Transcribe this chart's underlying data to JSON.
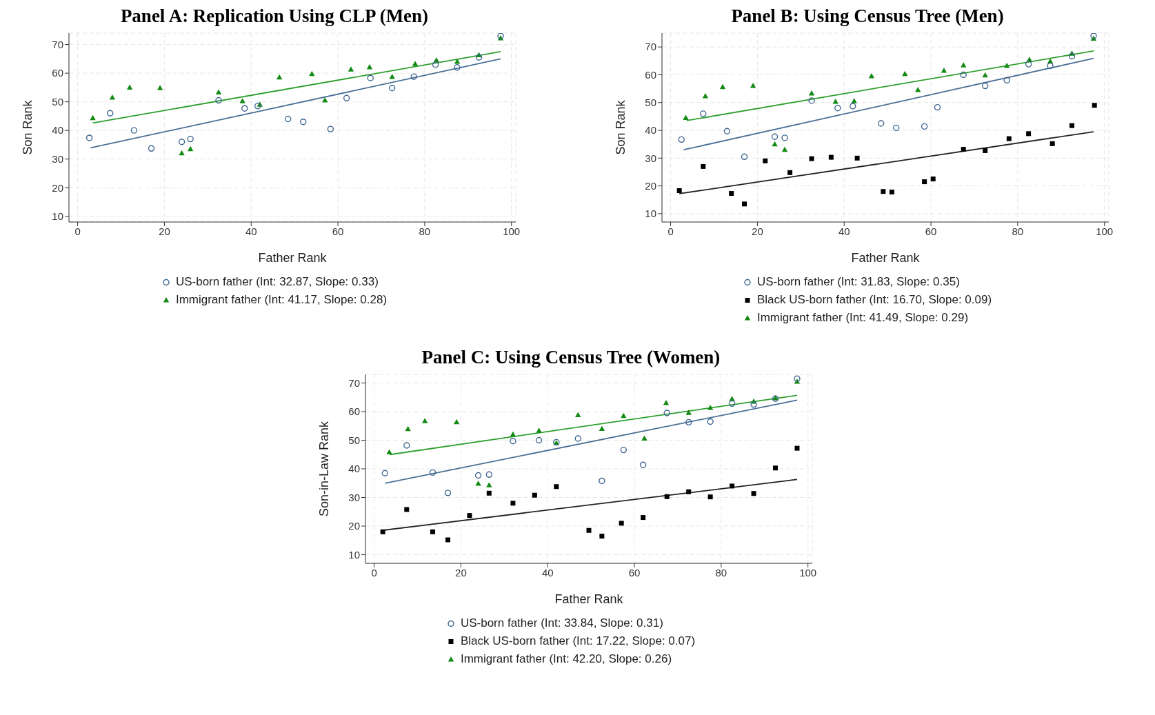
{
  "chart_data": [
    {
      "type": "scatter",
      "title": "Panel A: Replication Using CLP (Men)",
      "xlabel": "Father Rank",
      "ylabel": "Son Rank",
      "xlim": [
        -2,
        101
      ],
      "xticks": [
        0,
        20,
        40,
        60,
        80,
        100
      ],
      "ylim": [
        8,
        74
      ],
      "yticks": [
        10,
        20,
        30,
        40,
        50,
        60,
        70
      ],
      "grid": true,
      "legend": "bottom",
      "series": [
        {
          "name": "US-born father (Int: 32.87, Slope: 0.33)",
          "color": "#3d6490",
          "marker": "circle",
          "x": [
            2.7,
            7.5,
            13,
            17,
            24,
            26,
            32.5,
            38.5,
            41.5,
            48.5,
            52,
            58.3,
            62,
            67.5,
            72.5,
            77.5,
            82.5,
            87.5,
            92.5,
            97.5
          ],
          "values": [
            37.4,
            46,
            40,
            33.7,
            36,
            37,
            50.5,
            47.7,
            48.5,
            44,
            43,
            40.5,
            51.3,
            58.3,
            54.8,
            58.8,
            63,
            62,
            65.5,
            73
          ]
        },
        {
          "name": "Immigrant father (Int: 41.17, Slope: 0.28)",
          "color": "#138a13",
          "marker": "triangle",
          "x": [
            3.5,
            8,
            12,
            19,
            24,
            26,
            32.5,
            38,
            42,
            46.5,
            54,
            57,
            63,
            67.3,
            72.5,
            77.8,
            82.7,
            87.5,
            92.5,
            97.5
          ],
          "values": [
            44.3,
            51.5,
            55,
            54.8,
            32,
            33.5,
            53.3,
            50.2,
            49,
            58.5,
            59.7,
            50.5,
            61.3,
            62.1,
            58.7,
            63.2,
            64.5,
            64,
            66.3,
            72.2
          ]
        },
        {
          "type": "line",
          "color": "#4a6f96",
          "marker": "none",
          "x": [
            3,
            97.5
          ],
          "values": [
            33.9,
            65
          ]
        },
        {
          "type": "line",
          "color": "#2ea02e",
          "marker": "none",
          "x": [
            3.5,
            97.5
          ],
          "values": [
            42.6,
            67.5
          ]
        }
      ]
    },
    {
      "type": "scatter",
      "title": "Panel B: Using Census Tree (Men)",
      "xlabel": "Father Rank",
      "ylabel": "Son Rank",
      "xlim": [
        -2,
        101
      ],
      "xticks": [
        0,
        20,
        40,
        60,
        80,
        100
      ],
      "ylim": [
        7,
        75
      ],
      "yticks": [
        10,
        20,
        30,
        40,
        50,
        60,
        70
      ],
      "grid": true,
      "legend": "bottom",
      "series": [
        {
          "name": "US-born father (Int: 31.83, Slope: 0.35)",
          "color": "#3d6490",
          "marker": "circle",
          "x": [
            2.5,
            7.5,
            13,
            17,
            24,
            26.3,
            32.5,
            38.5,
            42,
            48.5,
            52,
            58.5,
            61.5,
            67.5,
            72.5,
            77.5,
            82.5,
            87.5,
            92.5,
            97.5
          ],
          "values": [
            36.7,
            46,
            39.7,
            30.5,
            37.7,
            37.3,
            50.7,
            48,
            48.7,
            42.5,
            40.9,
            41.4,
            48.3,
            60,
            56,
            58,
            63.8,
            63.2,
            66.7,
            74
          ]
        },
        {
          "name": "Black US-born father (Int: 16.70, Slope: 0.09)",
          "color": "#000000",
          "marker": "square",
          "x": [
            2,
            7.5,
            14,
            17,
            21.8,
            27.5,
            32.5,
            37,
            43,
            49,
            51,
            58.5,
            60.5,
            67.5,
            72.5,
            78,
            82.5,
            88,
            92.5,
            97.7
          ],
          "values": [
            18.3,
            27,
            17.3,
            13.5,
            29,
            24.8,
            29.8,
            30.3,
            30,
            18,
            17.8,
            21.5,
            22.5,
            33.2,
            32.7,
            37,
            38.8,
            35.2,
            41.7,
            49
          ]
        },
        {
          "name": "Immigrant father (Int: 41.49, Slope: 0.29)",
          "color": "#138a13",
          "marker": "triangle",
          "x": [
            3.5,
            8,
            12,
            19,
            24,
            26.3,
            32.5,
            38,
            42.3,
            46.3,
            54,
            57,
            63,
            67.5,
            72.5,
            77.5,
            82.7,
            87.5,
            92.5,
            97.5
          ],
          "values": [
            44.5,
            52.3,
            55.6,
            56,
            35,
            33,
            53.3,
            50.3,
            50.5,
            59.5,
            60.3,
            54.5,
            61.5,
            63.4,
            59.8,
            63.2,
            65.4,
            64.8,
            67.6,
            73
          ]
        },
        {
          "type": "line",
          "color": "#4a6f96",
          "marker": "none",
          "x": [
            3,
            97.5
          ],
          "values": [
            33,
            65.9
          ]
        },
        {
          "type": "line",
          "color": "#222222",
          "marker": "none",
          "x": [
            2,
            97.5
          ],
          "values": [
            17.2,
            39.5
          ]
        },
        {
          "type": "line",
          "color": "#2ea02e",
          "marker": "none",
          "x": [
            3.7,
            97.5
          ],
          "values": [
            43.5,
            68.6
          ]
        }
      ]
    },
    {
      "type": "scatter",
      "title": "Panel C: Using Census Tree (Women)",
      "xlabel": "Father Rank",
      "ylabel": "Son-in-Law Rank",
      "xlim": [
        -2,
        101
      ],
      "xticks": [
        0,
        20,
        40,
        60,
        80,
        100
      ],
      "ylim": [
        7,
        73
      ],
      "yticks": [
        10,
        20,
        30,
        40,
        50,
        60,
        70
      ],
      "grid": true,
      "legend": "bottom",
      "series": [
        {
          "name": "US-born father (Int: 33.84, Slope: 0.31)",
          "color": "#3d6490",
          "marker": "circle",
          "x": [
            2.5,
            7.5,
            13.5,
            17,
            24,
            26.5,
            32,
            38,
            42,
            47,
            52.5,
            57.5,
            62,
            67.5,
            72.5,
            77.5,
            82.5,
            87.5,
            92.5,
            97.5
          ],
          "values": [
            38.5,
            48.2,
            38.7,
            31.6,
            37.7,
            38,
            49.7,
            50,
            49.3,
            50.6,
            35.8,
            46.6,
            41.4,
            59.5,
            56.3,
            56.5,
            62.8,
            62.5,
            64.5,
            71.5
          ]
        },
        {
          "name": "Black US-born father (Int: 17.22, Slope: 0.07)",
          "color": "#000000",
          "marker": "square",
          "x": [
            2,
            7.5,
            13.5,
            17,
            22,
            26.5,
            32,
            37,
            42,
            49.5,
            52.5,
            57,
            62,
            67.5,
            72.5,
            77.5,
            82.5,
            87.5,
            92.5,
            97.5
          ],
          "values": [
            18,
            25.8,
            18,
            15.2,
            23.7,
            31.5,
            28,
            30.8,
            33.8,
            18.5,
            16.5,
            21,
            23,
            30.3,
            32,
            30.2,
            34,
            31.4,
            40.3,
            47.2
          ]
        },
        {
          "name": "Immigrant father (Int: 42.20, Slope: 0.26)",
          "color": "#138a13",
          "marker": "triangle",
          "x": [
            3.5,
            7.8,
            11.7,
            19,
            24,
            26.5,
            32,
            38,
            42,
            47,
            52.5,
            57.5,
            62.3,
            67.3,
            72.5,
            77.5,
            82.5,
            87.5,
            92.5,
            97.5
          ],
          "values": [
            45.8,
            53.9,
            56.7,
            56.3,
            34.8,
            34.3,
            52,
            53.3,
            49,
            58.8,
            54,
            58.5,
            50.6,
            63,
            59.6,
            61.3,
            64.4,
            63.5,
            64.7,
            70.5
          ]
        },
        {
          "type": "line",
          "color": "#4a6f96",
          "marker": "none",
          "x": [
            2.5,
            97.5
          ],
          "values": [
            35,
            64
          ]
        },
        {
          "type": "line",
          "color": "#222222",
          "marker": "none",
          "x": [
            1.8,
            97.5
          ],
          "values": [
            18.5,
            36.3
          ]
        },
        {
          "type": "line",
          "color": "#2ea02e",
          "marker": "none",
          "x": [
            3.7,
            97.5
          ],
          "values": [
            45,
            65.7
          ]
        }
      ]
    }
  ]
}
